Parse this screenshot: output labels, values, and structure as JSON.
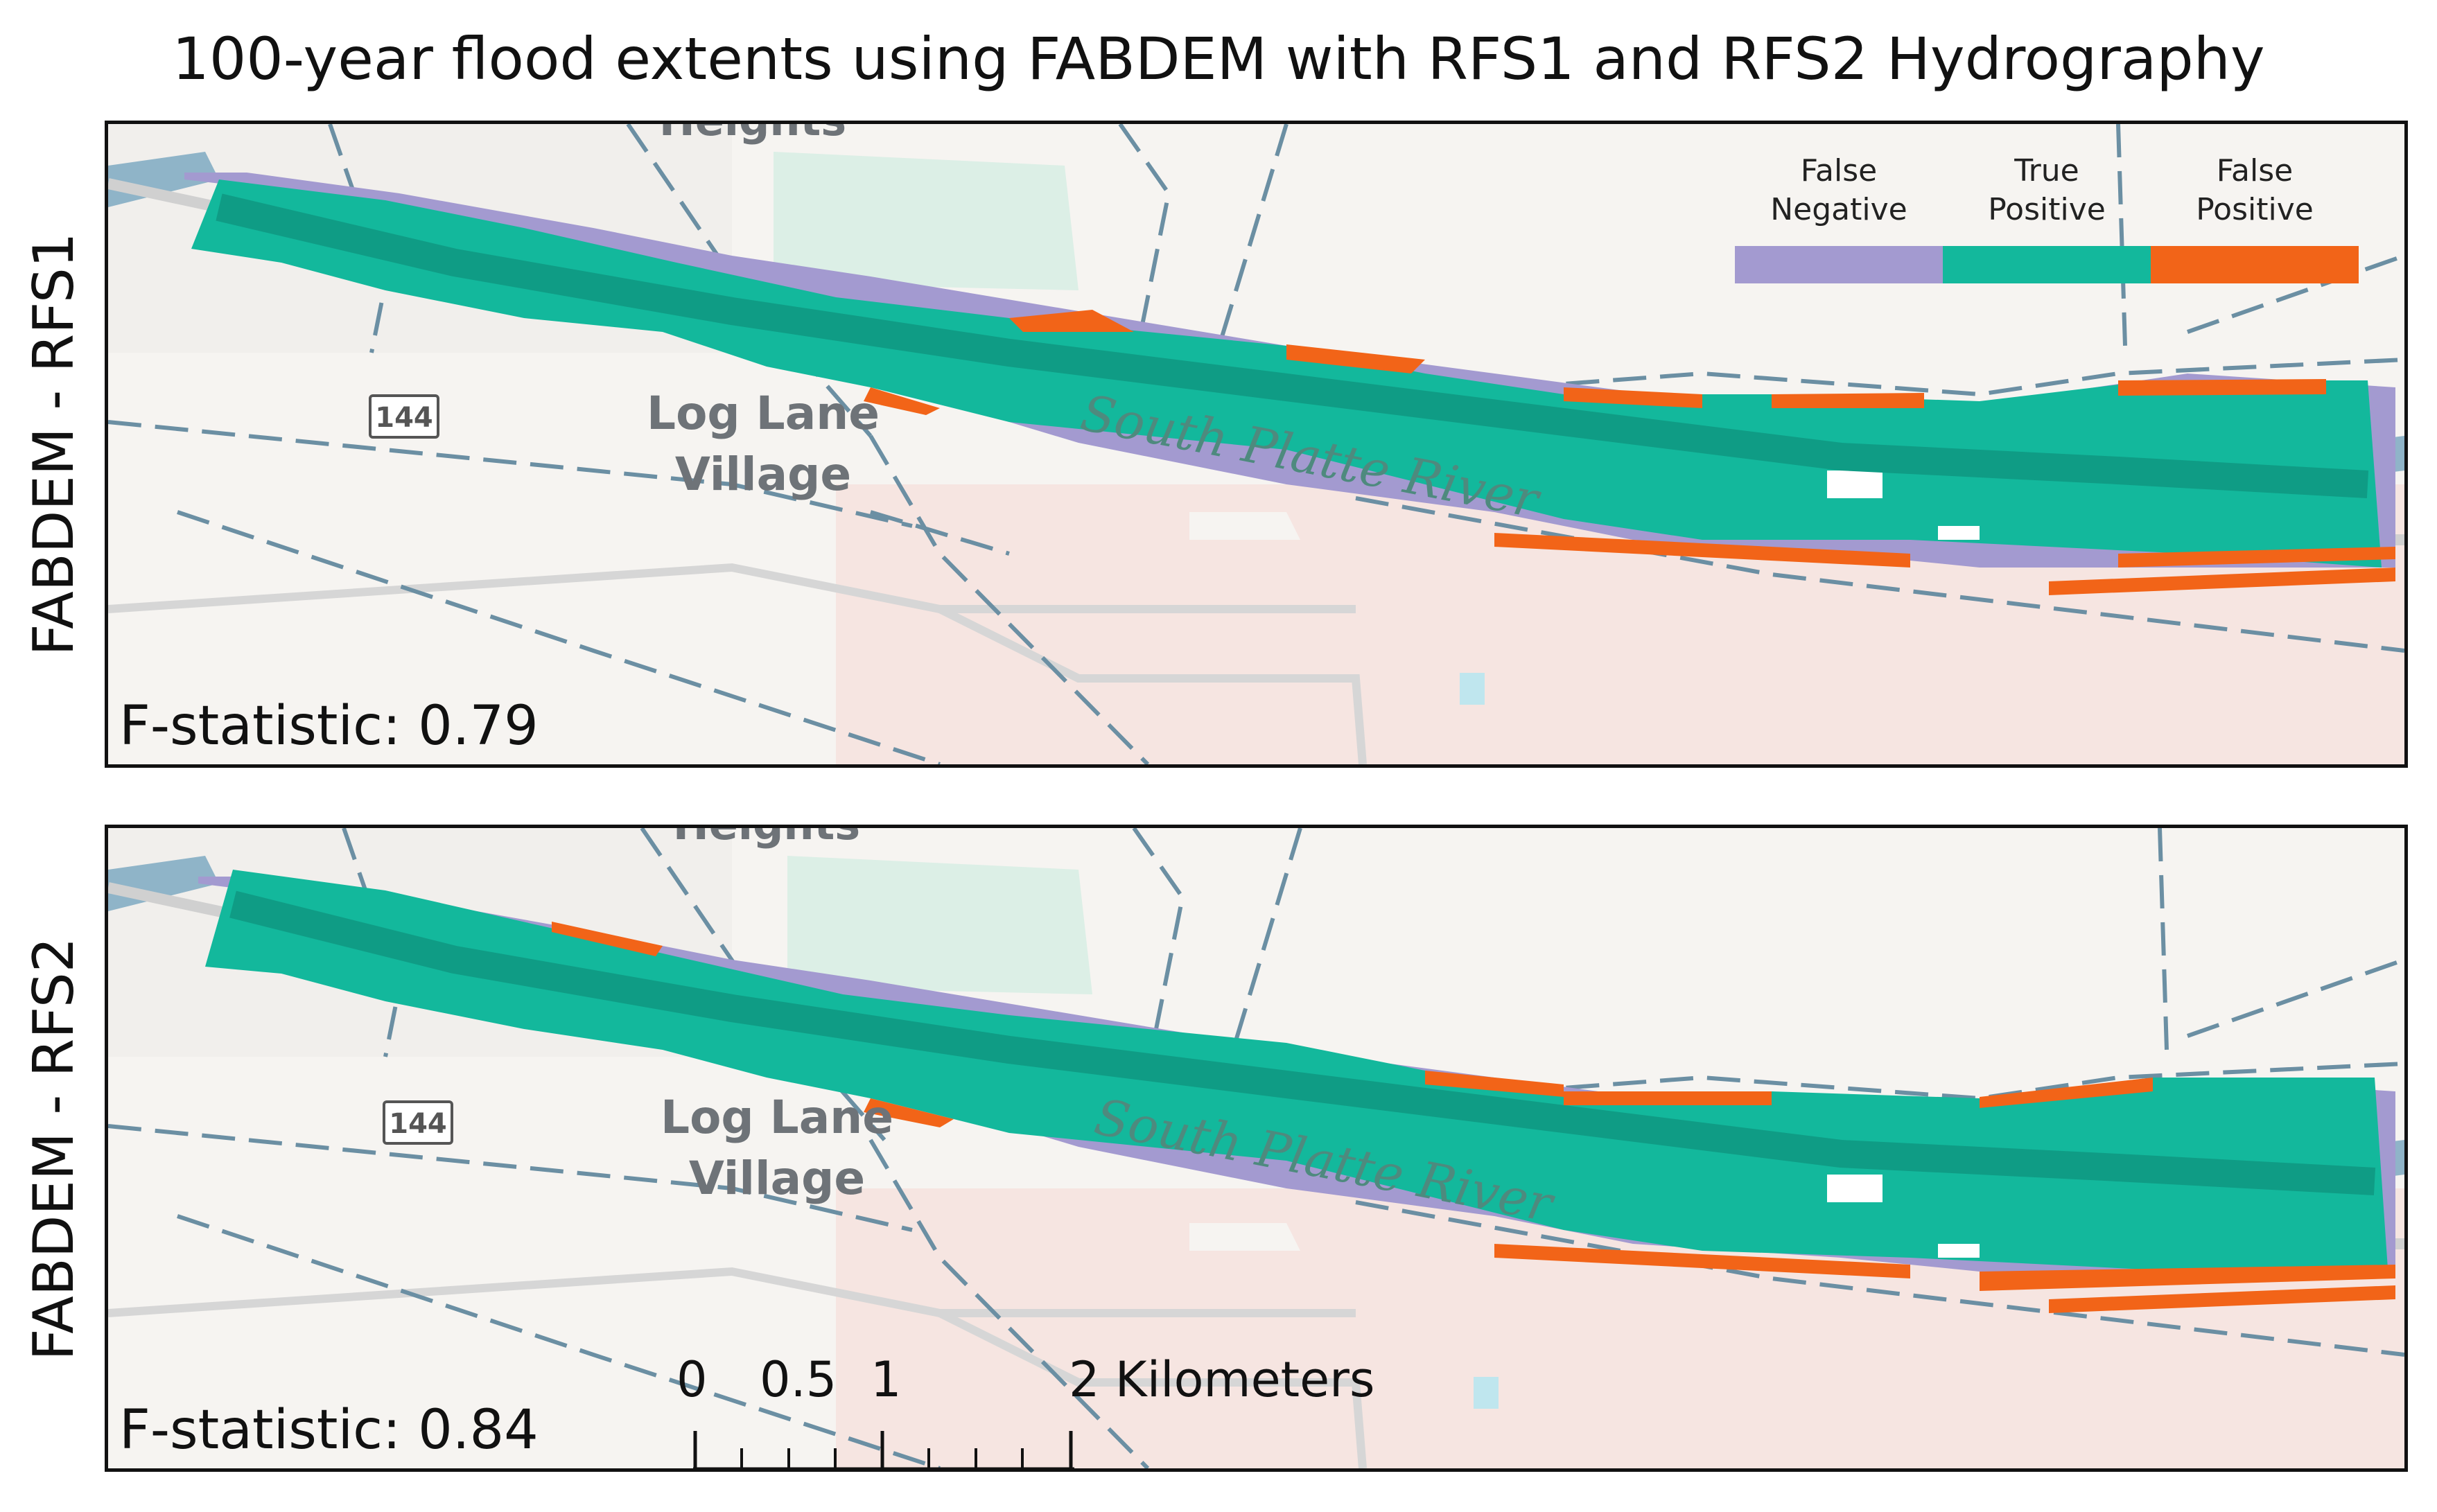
{
  "title": "100-year flood extents using FABDEM with RFS1 and RFS2 Hydrography",
  "colors": {
    "false_negative": "#a39ad0",
    "true_positive": "#13b89c",
    "false_positive": "#f26418",
    "river_channel": "#0f9c85",
    "road_dash": "#6b8fa3",
    "highway": "#cfcfcf",
    "water": "#8fb4c8",
    "park": "#dcefe6",
    "urban": "#f6e5e1"
  },
  "legend": {
    "items": [
      {
        "line1": "False",
        "line2": "Negative",
        "color": "#a39ad0"
      },
      {
        "line1": "True",
        "line2": "Positive",
        "color": "#13b89c"
      },
      {
        "line1": "False",
        "line2": "Positive",
        "color": "#f26418"
      }
    ]
  },
  "panels": [
    {
      "label": "FABDEM - RFS1",
      "f_statistic": "F-statistic: 0.79",
      "map_labels": {
        "place_top": "Heights",
        "place_main_1": "Log Lane",
        "place_main_2": "Village",
        "river": "South Platte River",
        "route": "144"
      }
    },
    {
      "label": "FABDEM - RFS2",
      "f_statistic": "F-statistic: 0.84",
      "map_labels": {
        "place_top": "Heights",
        "place_main_1": "Log Lane",
        "place_main_2": "Village",
        "river": "South Platte River",
        "route": "144"
      }
    }
  ],
  "scalebar": {
    "labels": [
      "0",
      "0.5",
      "1",
      "2 Kilometers"
    ]
  }
}
